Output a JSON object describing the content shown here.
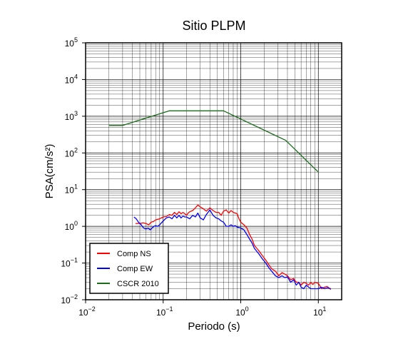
{
  "chart_data": {
    "type": "line",
    "title": "Sitio PLPM",
    "xlabel": "Periodo (s)",
    "ylabel": "PSA(cm/s²)",
    "xscale": "log",
    "yscale": "log",
    "xlim": [
      0.01,
      20
    ],
    "ylim": [
      0.01,
      100000
    ],
    "grid": true,
    "legend_position": "bottom-left",
    "x_ticks": [
      {
        "value": 0.01,
        "base": "10",
        "exp": "−2"
      },
      {
        "value": 0.1,
        "base": "10",
        "exp": "−1"
      },
      {
        "value": 1,
        "base": "10",
        "exp": "0"
      },
      {
        "value": 10,
        "base": "10",
        "exp": "1"
      }
    ],
    "y_ticks": [
      {
        "value": 0.01,
        "base": "10",
        "exp": "−2"
      },
      {
        "value": 0.1,
        "base": "10",
        "exp": "−1"
      },
      {
        "value": 1,
        "base": "10",
        "exp": "0"
      },
      {
        "value": 10,
        "base": "10",
        "exp": "1"
      },
      {
        "value": 100,
        "base": "10",
        "exp": "2"
      },
      {
        "value": 1000,
        "base": "10",
        "exp": "3"
      },
      {
        "value": 10000,
        "base": "10",
        "exp": "4"
      },
      {
        "value": 100000,
        "base": "10",
        "exp": "5"
      }
    ],
    "series": [
      {
        "name": "Comp NS",
        "color": "#ff0000",
        "x": [
          0.044,
          0.05,
          0.055,
          0.06,
          0.065,
          0.07,
          0.075,
          0.08,
          0.09,
          0.1,
          0.11,
          0.12,
          0.13,
          0.14,
          0.15,
          0.16,
          0.17,
          0.18,
          0.19,
          0.2,
          0.21,
          0.22,
          0.24,
          0.26,
          0.28,
          0.3,
          0.33,
          0.36,
          0.4,
          0.44,
          0.48,
          0.52,
          0.56,
          0.6,
          0.65,
          0.7,
          0.75,
          0.8,
          0.85,
          0.9,
          0.95,
          1.0,
          1.1,
          1.2,
          1.3,
          1.4,
          1.5,
          1.7,
          1.9,
          2.1,
          2.3,
          2.5,
          2.8,
          3.1,
          3.4,
          3.7,
          4.0,
          4.4,
          4.8,
          5.2,
          5.6,
          6.0,
          6.5,
          7.0,
          7.5,
          8.0,
          8.5,
          9.0,
          10,
          11,
          12,
          13,
          14.5
        ],
        "y": [
          1.2,
          1.2,
          1.25,
          1.2,
          1.1,
          1.3,
          1.35,
          1.5,
          1.6,
          1.8,
          1.85,
          2.1,
          2.0,
          2.4,
          2.1,
          2.5,
          2.2,
          2.4,
          2.2,
          2.0,
          2.3,
          2.5,
          2.7,
          3.2,
          3.8,
          3.4,
          3.0,
          2.6,
          3.2,
          2.7,
          2.4,
          2.4,
          2.0,
          2.6,
          2.8,
          2.3,
          2.7,
          2.4,
          2.3,
          2.2,
          1.6,
          1.3,
          1.1,
          0.9,
          0.6,
          0.45,
          0.3,
          0.22,
          0.16,
          0.12,
          0.09,
          0.07,
          0.06,
          0.045,
          0.055,
          0.05,
          0.045,
          0.035,
          0.038,
          0.03,
          0.03,
          0.025,
          0.03,
          0.028,
          0.025,
          0.03,
          0.026,
          0.03,
          0.028,
          0.02,
          0.022,
          0.023,
          0.019
        ]
      },
      {
        "name": "Comp EW",
        "color": "#0000ff",
        "x": [
          0.042,
          0.045,
          0.048,
          0.052,
          0.056,
          0.06,
          0.064,
          0.068,
          0.072,
          0.076,
          0.08,
          0.085,
          0.09,
          0.1,
          0.11,
          0.12,
          0.13,
          0.14,
          0.15,
          0.16,
          0.17,
          0.18,
          0.19,
          0.2,
          0.22,
          0.24,
          0.26,
          0.28,
          0.3,
          0.33,
          0.36,
          0.4,
          0.44,
          0.48,
          0.52,
          0.56,
          0.6,
          0.65,
          0.7,
          0.75,
          0.8,
          0.85,
          0.9,
          1.0,
          1.1,
          1.2,
          1.3,
          1.4,
          1.5,
          1.7,
          1.9,
          2.1,
          2.3,
          2.5,
          2.8,
          3.1,
          3.4,
          3.7,
          4.0,
          4.4,
          4.8,
          5.2,
          5.6,
          6.0,
          6.5,
          7.0,
          7.5,
          8.0,
          9.0,
          10,
          11,
          12,
          13,
          14.5
        ],
        "y": [
          1.8,
          1.6,
          1.3,
          1.1,
          0.9,
          0.85,
          0.9,
          0.8,
          0.9,
          1.0,
          1.05,
          1.0,
          1.1,
          1.4,
          1.7,
          1.8,
          1.6,
          2.0,
          1.7,
          2.0,
          1.7,
          1.9,
          1.8,
          1.8,
          1.6,
          2.0,
          1.8,
          2.3,
          1.7,
          1.5,
          2.1,
          2.8,
          2.0,
          1.7,
          1.6,
          1.4,
          1.3,
          1.0,
          1.0,
          1.1,
          1.0,
          1.05,
          0.95,
          0.9,
          0.8,
          0.6,
          0.45,
          0.35,
          0.25,
          0.18,
          0.13,
          0.1,
          0.075,
          0.06,
          0.045,
          0.04,
          0.045,
          0.04,
          0.042,
          0.03,
          0.035,
          0.025,
          0.03,
          0.022,
          0.02,
          0.025,
          0.022,
          0.02,
          0.02,
          0.02,
          0.022,
          0.02,
          0.021,
          0.02
        ]
      },
      {
        "name": "CSCR 2010",
        "color": "#1a6b1a",
        "x": [
          0.02,
          0.03,
          0.12,
          0.6,
          3.8,
          10
        ],
        "y": [
          560,
          560,
          1400,
          1400,
          220,
          30
        ]
      }
    ]
  }
}
